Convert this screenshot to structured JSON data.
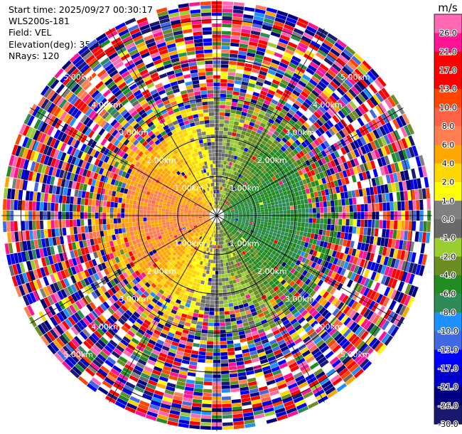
{
  "header": {
    "start_time": "Start time: 2025/09/27 00:30:17",
    "station": "WLS200s-181",
    "field": "Field: VEL",
    "elevation": "Elevation(deg): 35.00",
    "nrays": "NRays: 120"
  },
  "chart_data": {
    "type": "ppi",
    "field": "VEL",
    "units": "m/s",
    "range_rings_km": [
      1,
      2,
      3,
      4,
      5
    ],
    "ring_labels": [
      "1.00km",
      "2.00km",
      "3.00km",
      "4.00km",
      "5.00km"
    ],
    "max_range_km": 5.5,
    "n_rays": 120,
    "colorbar": {
      "levels": [
        -30.0,
        -26.0,
        -21.0,
        -17.0,
        -13.0,
        -10.0,
        -8.0,
        -6.0,
        -4.0,
        -2.0,
        -1.0,
        0.0,
        1.0,
        2.0,
        4.0,
        6.0,
        8.0,
        10.0,
        13.0,
        17.0,
        21.0,
        26.0
      ],
      "tick_labels": [
        "-30.0",
        "-26.0",
        "-21.0",
        "-17.0",
        "-13.0",
        "-10.0",
        "-8.0",
        "-6.0",
        "-4.0",
        "-2.0",
        "-1.0",
        "0.0",
        "1.0",
        "2.0",
        "4.0",
        "6.0",
        "8.0",
        "10.0",
        "13.0",
        "17.0",
        "21.0",
        "26.0"
      ],
      "colors": [
        "#191970",
        "#000080",
        "#0000cd",
        "#0000ff",
        "#4169e1",
        "#1e90ff",
        "#2e8b57",
        "#228b22",
        "#6b8e23",
        "#9acd32",
        "#696969",
        "#808080",
        "#ffff00",
        "#ffd700",
        "#ffa500",
        "#ff7f50",
        "#ff6347",
        "#ff4500",
        "#ff0000",
        "#ff0000",
        "#ff1493",
        "#ff69b4"
      ]
    }
  }
}
